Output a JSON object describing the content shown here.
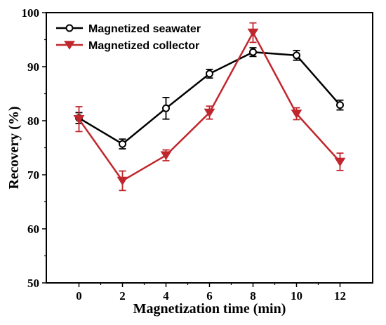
{
  "chart_data": {
    "type": "line",
    "title": "",
    "xlabel": "Magnetization time (min)",
    "ylabel": "Recovery (%)",
    "x": [
      0,
      2,
      4,
      6,
      8,
      10,
      12
    ],
    "xlim": [
      -1.5,
      13.5
    ],
    "ylim": [
      50,
      100
    ],
    "xticks": [
      0,
      2,
      4,
      6,
      8,
      10,
      12
    ],
    "yticks": [
      50,
      60,
      70,
      80,
      90,
      100
    ],
    "xtick_labels": [
      "0",
      "2",
      "4",
      "6",
      "8",
      "10",
      "12"
    ],
    "ytick_labels": [
      "50",
      "60",
      "70",
      "80",
      "90",
      "100"
    ],
    "grid": false,
    "legend_position": "top-left",
    "series": [
      {
        "name": "Magnetized seawater",
        "color": "#000000",
        "marker": "circle",
        "values": [
          80.5,
          75.7,
          82.3,
          88.7,
          92.7,
          92.1,
          82.9
        ],
        "errors": [
          1.0,
          0.9,
          2.0,
          0.8,
          0.8,
          0.9,
          0.9
        ]
      },
      {
        "name": "Magnetized collector",
        "color": "#c0272d",
        "marker": "triangle-down",
        "values": [
          80.3,
          68.9,
          73.6,
          81.5,
          96.3,
          81.3,
          72.4
        ],
        "errors": [
          2.3,
          1.8,
          1.0,
          1.2,
          1.8,
          1.1,
          1.6
        ]
      }
    ]
  }
}
